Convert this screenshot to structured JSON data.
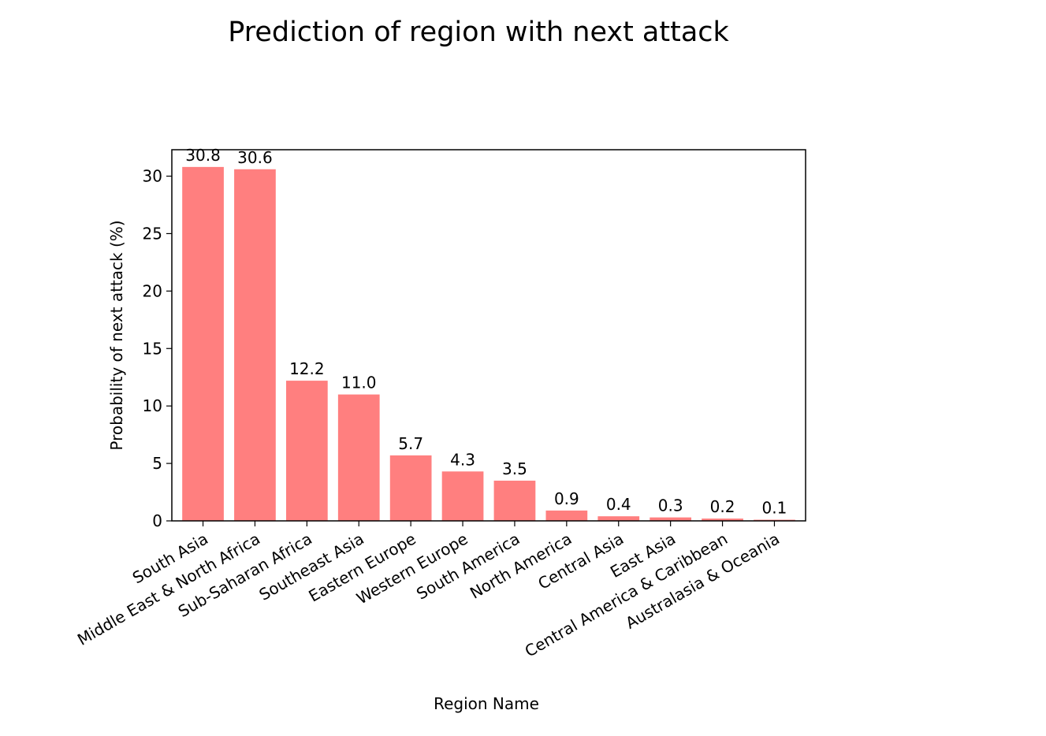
{
  "chart_data": {
    "type": "bar",
    "title": "Prediction of region with next attack",
    "xlabel": "Region Name",
    "ylabel": "Probability of next attack (%)",
    "categories": [
      "South Asia",
      "Middle East & North Africa",
      "Sub-Saharan Africa",
      "Southeast Asia",
      "Eastern Europe",
      "Western Europe",
      "South America",
      "North America",
      "Central Asia",
      "East Asia",
      "Central America & Caribbean",
      "Australasia & Oceania"
    ],
    "values": [
      30.8,
      30.6,
      12.2,
      11.0,
      5.7,
      4.3,
      3.5,
      0.9,
      0.4,
      0.3,
      0.2,
      0.1
    ],
    "data_labels": [
      "30.8",
      "30.6",
      "12.2",
      "11.0",
      "5.7",
      "4.3",
      "3.5",
      "0.9",
      "0.4",
      "0.3",
      "0.2",
      "0.1"
    ],
    "ylim": [
      0,
      32.3
    ],
    "yticks": [
      0,
      5,
      10,
      15,
      20,
      25,
      30
    ],
    "bar_color": "#ff7f7f",
    "grid": false,
    "legend": "none"
  }
}
